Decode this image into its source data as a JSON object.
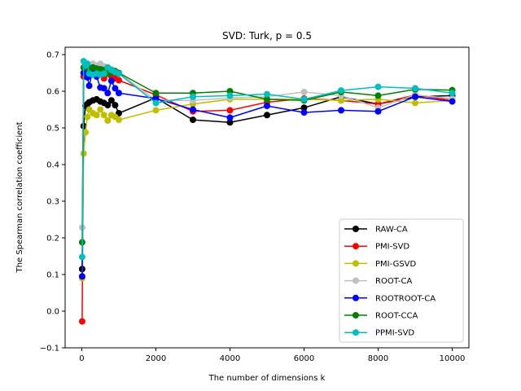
{
  "chart_data": {
    "type": "line",
    "title": "SVD: Turk, p = 0.5",
    "xlabel": "The number of dimensions k",
    "ylabel": "The Spearman correlation coefficient",
    "xlim": [
      -450,
      10450
    ],
    "ylim": [
      -0.1,
      0.72
    ],
    "xticks": [
      0,
      2000,
      4000,
      6000,
      8000,
      10000
    ],
    "yticks": [
      -0.1,
      0.0,
      0.1,
      0.2,
      0.3,
      0.4,
      0.5,
      0.6,
      0.7
    ],
    "xtick_labels": [
      "0",
      "2000",
      "4000",
      "6000",
      "8000",
      "10000"
    ],
    "ytick_labels": [
      "−0.1",
      "0.0",
      "0.1",
      "0.2",
      "0.3",
      "0.4",
      "0.5",
      "0.6",
      "0.7"
    ],
    "legend_position": "lower-right",
    "series": [
      {
        "name": "RAW-CA",
        "color": "#000000",
        "x": [
          10,
          50,
          100,
          150,
          200,
          300,
          400,
          500,
          600,
          700,
          800,
          900,
          1000,
          2000,
          3000,
          4000,
          5000,
          6000,
          7000,
          8000,
          9000,
          10000
        ],
        "y": [
          0.115,
          0.505,
          0.56,
          0.565,
          0.57,
          0.575,
          0.578,
          0.572,
          0.568,
          0.562,
          0.575,
          0.562,
          0.54,
          0.582,
          0.522,
          0.515,
          0.535,
          0.555,
          0.585,
          0.565,
          0.585,
          0.588
        ]
      },
      {
        "name": "PMI-SVD",
        "color": "#ff0000",
        "x": [
          10,
          50,
          100,
          150,
          200,
          300,
          400,
          500,
          600,
          700,
          800,
          900,
          1000,
          2000,
          3000,
          4000,
          5000,
          6000,
          7000,
          8000,
          9000,
          10000
        ],
        "y": [
          -0.028,
          0.64,
          0.66,
          0.665,
          0.67,
          0.668,
          0.662,
          0.655,
          0.635,
          0.648,
          0.64,
          0.635,
          0.63,
          0.59,
          0.545,
          0.548,
          0.57,
          0.58,
          0.575,
          0.565,
          0.59,
          0.575
        ]
      },
      {
        "name": "PMI-GSVD",
        "color": "#bfbf00",
        "x": [
          10,
          50,
          100,
          150,
          200,
          300,
          400,
          500,
          600,
          700,
          800,
          900,
          1000,
          2000,
          3000,
          4000,
          5000,
          6000,
          7000,
          8000,
          9000,
          10000
        ],
        "y": [
          0.09,
          0.43,
          0.488,
          0.53,
          0.55,
          0.54,
          0.535,
          0.55,
          0.535,
          0.52,
          0.535,
          0.53,
          0.522,
          0.548,
          0.565,
          0.578,
          0.578,
          0.578,
          0.575,
          0.578,
          0.568,
          0.575
        ]
      },
      {
        "name": "ROOT-CA",
        "color": "#bfbfbf",
        "x": [
          10,
          50,
          100,
          150,
          200,
          300,
          400,
          500,
          600,
          700,
          800,
          900,
          1000,
          2000,
          3000,
          4000,
          5000,
          6000,
          7000,
          8000,
          9000,
          10000
        ],
        "y": [
          0.228,
          0.665,
          0.67,
          0.672,
          0.668,
          0.675,
          0.67,
          0.675,
          0.668,
          0.665,
          0.66,
          0.655,
          0.65,
          0.575,
          0.575,
          0.582,
          0.585,
          0.598,
          0.588,
          0.555,
          0.59,
          0.58
        ]
      },
      {
        "name": "ROOTROOT-CA",
        "color": "#0000ff",
        "x": [
          10,
          50,
          100,
          150,
          200,
          300,
          400,
          500,
          600,
          700,
          800,
          900,
          1000,
          2000,
          3000,
          4000,
          5000,
          6000,
          7000,
          8000,
          9000,
          10000
        ],
        "y": [
          0.095,
          0.65,
          0.668,
          0.638,
          0.615,
          0.66,
          0.64,
          0.61,
          0.608,
          0.595,
          0.628,
          0.608,
          0.595,
          0.58,
          0.55,
          0.528,
          0.56,
          0.542,
          0.548,
          0.545,
          0.585,
          0.572
        ]
      },
      {
        "name": "ROOT-CCA",
        "color": "#008000",
        "x": [
          10,
          50,
          100,
          150,
          200,
          300,
          400,
          500,
          600,
          700,
          800,
          900,
          1000,
          2000,
          3000,
          4000,
          5000,
          6000,
          7000,
          8000,
          9000,
          10000
        ],
        "y": [
          0.188,
          0.665,
          0.675,
          0.668,
          0.66,
          0.665,
          0.662,
          0.66,
          0.658,
          0.648,
          0.652,
          0.655,
          0.65,
          0.595,
          0.595,
          0.6,
          0.578,
          0.575,
          0.598,
          0.588,
          0.605,
          0.603
        ]
      },
      {
        "name": "PPMI-SVD",
        "color": "#00bfbf",
        "x": [
          10,
          50,
          100,
          150,
          200,
          300,
          400,
          500,
          600,
          700,
          800,
          900,
          1000,
          2000,
          3000,
          4000,
          5000,
          6000,
          7000,
          8000,
          9000,
          10000
        ],
        "y": [
          0.148,
          0.682,
          0.67,
          0.675,
          0.648,
          0.645,
          0.648,
          0.645,
          0.648,
          0.665,
          0.658,
          0.652,
          0.648,
          0.568,
          0.585,
          0.588,
          0.592,
          0.578,
          0.602,
          0.612,
          0.608,
          0.595
        ]
      }
    ]
  }
}
